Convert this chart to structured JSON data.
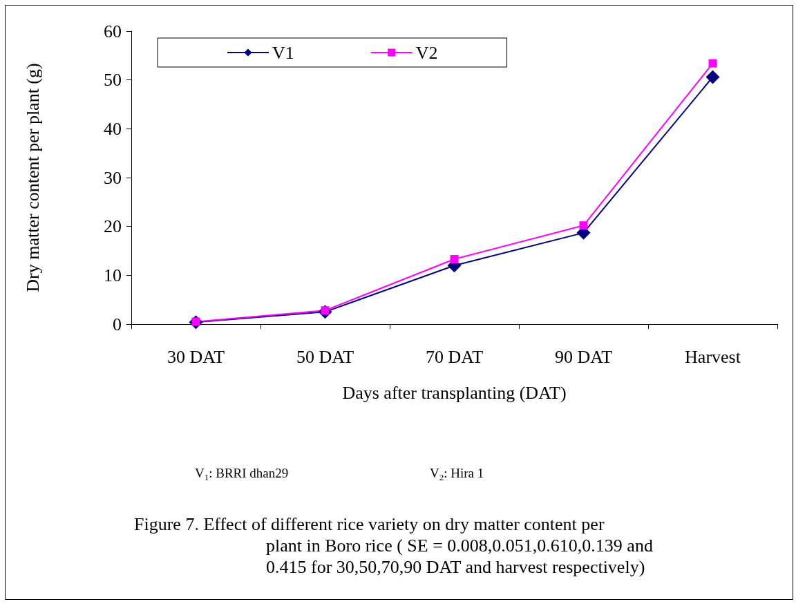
{
  "chart_data": {
    "type": "line",
    "xlabel": "Days after transplanting (DAT)",
    "ylabel": "Dry matter content per plant (g)",
    "categories": [
      "30 DAT",
      "50 DAT",
      "70 DAT",
      "90 DAT",
      "Harvest"
    ],
    "series": [
      {
        "name": "V1",
        "color": "#000080",
        "marker": "diamond",
        "values": [
          0.4,
          2.5,
          12.0,
          18.7,
          50.6
        ]
      },
      {
        "name": "V2",
        "color": "#ff00ff",
        "marker": "square",
        "values": [
          0.5,
          2.8,
          13.3,
          20.2,
          53.4
        ]
      }
    ],
    "ylim": [
      0,
      60
    ],
    "yticks": [
      0,
      10,
      20,
      30,
      40,
      50,
      60
    ],
    "grid": false,
    "legend": "top left",
    "line_style": "solid",
    "annotations": [
      "V$_{1}$: BRRI dhan29",
      "V$_{2}$: Hira 1",
      "Figure 7. Effect of different rice variety on dry matter content per\nplant in Boro rice ( SE = 0.008,0.051,0.610,0.139 and\n0.415 for 30,50,70,90 DAT and harvest respectively)"
    ]
  }
}
